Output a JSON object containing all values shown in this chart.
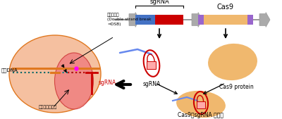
{
  "bg_color": "#ffffff",
  "sgRNA_label": "sgRNA",
  "cas9_label": "Cas9",
  "blue_color": "#4472c4",
  "red_color": "#cc0000",
  "red_fill": "#ff9999",
  "orange_color": "#f0b86e",
  "purple_color": "#9966cc",
  "gray_color": "#888888",
  "light_orange_bg": "#f5c0a0",
  "dark_orange": "#e07820",
  "teal_color": "#006666",
  "magenta_color": "#ff00ff",
  "blue_line_color": "#6688ee",
  "text_dsb": "二重鎖切断\n(Double strand break\n=DSB)",
  "text_target_dna": "標的DNA",
  "text_target_seq": "ターゲット配列",
  "text_sgrna_left": "sgRNA",
  "text_cas9_protein": "Cas9 protein",
  "text_complex": "Cas9－sgRNA 複合体"
}
